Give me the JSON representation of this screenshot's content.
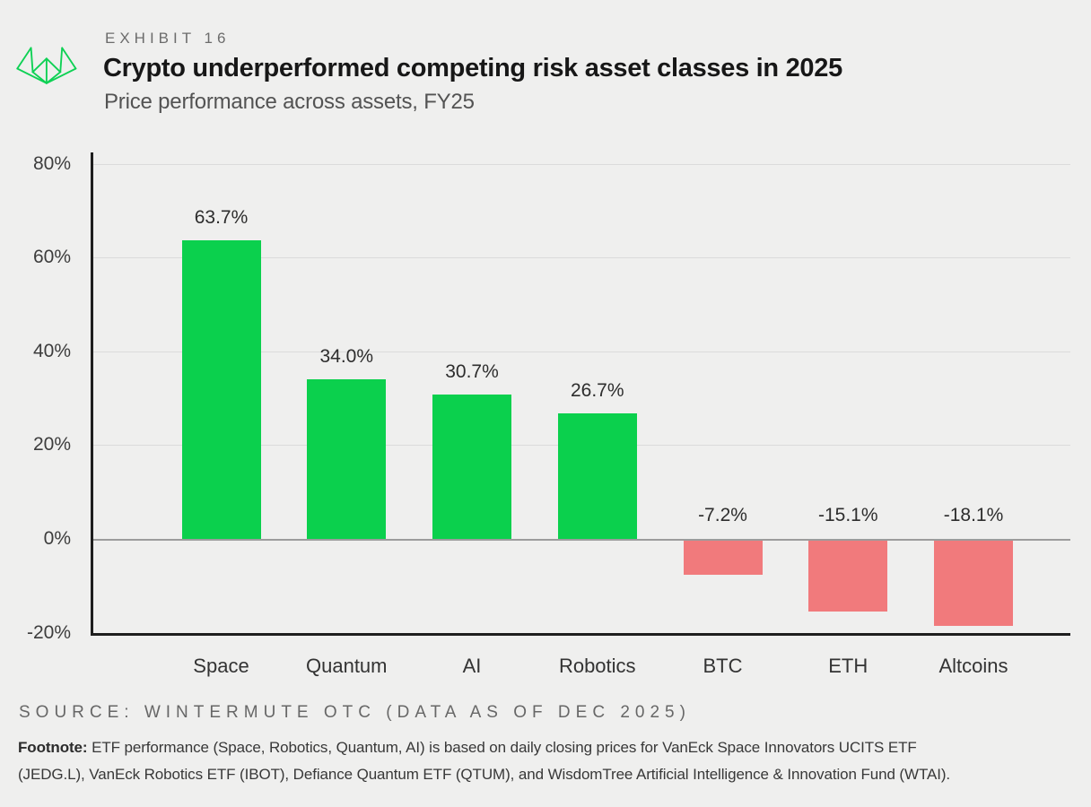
{
  "header": {
    "exhibit": "EXHIBIT 16",
    "title": "Crypto underperformed competing risk asset classes in 2025",
    "subtitle": "Price performance across assets, FY25",
    "logo_color": "#0ed154"
  },
  "chart_data": {
    "type": "bar",
    "title": "Crypto underperformed competing risk asset classes in 2025",
    "subtitle": "Price performance across assets, FY25",
    "categories": [
      "Space",
      "Quantum",
      "AI",
      "Robotics",
      "BTC",
      "ETH",
      "Altcoins"
    ],
    "values": [
      63.7,
      34.0,
      30.7,
      26.7,
      -7.2,
      -15.1,
      -18.1
    ],
    "value_labels": [
      "63.7%",
      "34.0%",
      "30.7%",
      "26.7%",
      "-7.2%",
      "-15.1%",
      "-18.1%"
    ],
    "xlabel": "",
    "ylabel": "",
    "ylim": [
      -20,
      82
    ],
    "yticks": [
      80,
      60,
      40,
      20,
      0,
      -20
    ],
    "ytick_labels": [
      "80%",
      "60%",
      "40%",
      "20%",
      "0%",
      "-20%"
    ],
    "grid": true,
    "legend": false,
    "positive_color": "#0bd04d",
    "negative_color": "#f17a7c"
  },
  "source": {
    "text": "SOURCE: WINTERMUTE OTC (DATA AS OF DEC 2025)"
  },
  "footnote": {
    "label": "Footnote:",
    "text": "ETF performance (Space, Robotics, Quantum, AI) is based on daily closing prices for VanEck Space Innovators UCITS ETF (JEDG.L), VanEck Robotics ETF (IBOT), Defiance Quantum ETF (QTUM), and WisdomTree Artificial Intelligence & Innovation Fund (WTAI)."
  }
}
